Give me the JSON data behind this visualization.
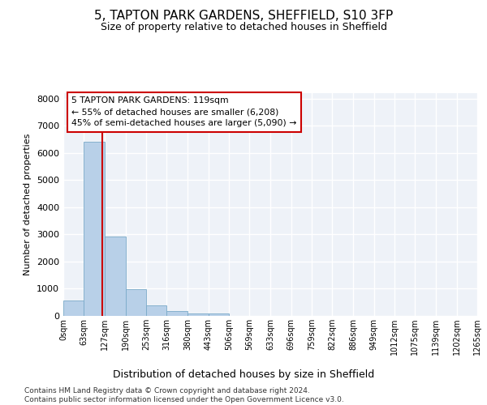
{
  "title": "5, TAPTON PARK GARDENS, SHEFFIELD, S10 3FP",
  "subtitle": "Size of property relative to detached houses in Sheffield",
  "xlabel": "Distribution of detached houses by size in Sheffield",
  "ylabel": "Number of detached properties",
  "bar_color": "#b8d0e8",
  "bar_edge_color": "#7aaac8",
  "background_color": "#eef2f8",
  "grid_color": "#ffffff",
  "bin_edges": [
    0,
    63,
    127,
    190,
    253,
    316,
    380,
    443,
    506,
    569,
    633,
    696,
    759,
    822,
    886,
    949,
    1012,
    1075,
    1139,
    1202,
    1265
  ],
  "bar_heights": [
    560,
    6400,
    2920,
    980,
    380,
    175,
    100,
    100,
    0,
    0,
    0,
    0,
    0,
    0,
    0,
    0,
    0,
    0,
    0,
    0
  ],
  "property_size": 119,
  "annotation_line1": "5 TAPTON PARK GARDENS: 119sqm",
  "annotation_line2": "← 55% of detached houses are smaller (6,208)",
  "annotation_line3": "45% of semi-detached houses are larger (5,090) →",
  "red_line_color": "#cc0000",
  "annotation_box_color": "#ffffff",
  "annotation_box_edge": "#cc0000",
  "footer_line1": "Contains HM Land Registry data © Crown copyright and database right 2024.",
  "footer_line2": "Contains public sector information licensed under the Open Government Licence v3.0.",
  "tick_labels": [
    "0sqm",
    "63sqm",
    "127sqm",
    "190sqm",
    "253sqm",
    "316sqm",
    "380sqm",
    "443sqm",
    "506sqm",
    "569sqm",
    "633sqm",
    "696sqm",
    "759sqm",
    "822sqm",
    "886sqm",
    "949sqm",
    "1012sqm",
    "1075sqm",
    "1139sqm",
    "1202sqm",
    "1265sqm"
  ],
  "ylim": [
    0,
    8200
  ],
  "yticks": [
    0,
    1000,
    2000,
    3000,
    4000,
    5000,
    6000,
    7000,
    8000
  ],
  "xlim": [
    0,
    1265
  ]
}
